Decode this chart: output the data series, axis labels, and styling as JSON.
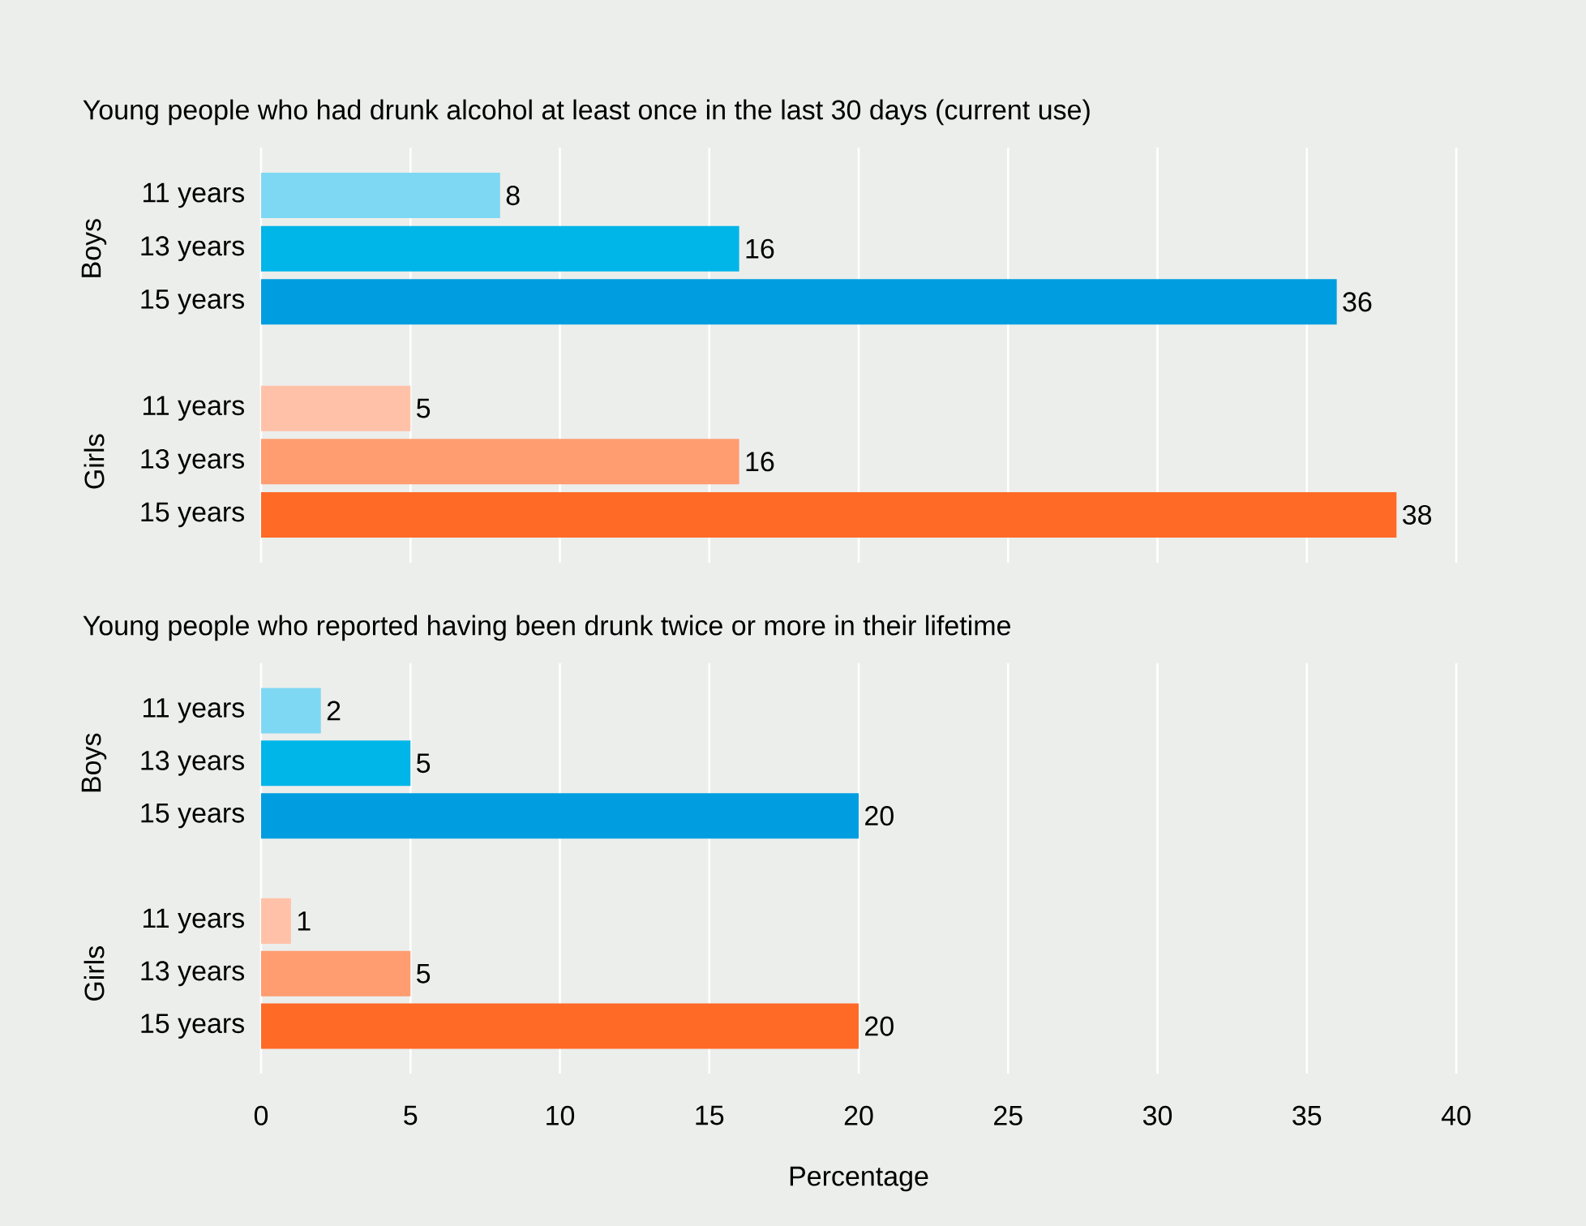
{
  "chart_data": [
    {
      "type": "bar",
      "orientation": "horizontal",
      "title": "Young people who had drunk alcohol at least once in the last 30 days (current use)",
      "categories": [
        "11 years",
        "13 years",
        "15 years",
        null,
        "11 years",
        "13 years",
        "15 years"
      ],
      "values": [
        8,
        16,
        36,
        null,
        5,
        16,
        38
      ],
      "colors": [
        "#7fd8f3",
        "#00b5e8",
        "#009ee0",
        null,
        "#ffc2a8",
        "#ff9c70",
        "#ff6a27"
      ],
      "annotations": [
        "Boys",
        "Girls"
      ],
      "xlim": [
        0,
        40
      ],
      "xticks": [
        0,
        5,
        10,
        15,
        20,
        25,
        30,
        35,
        40
      ],
      "grid": "x",
      "data_labels": true,
      "tick_labels": "y"
    },
    {
      "type": "bar",
      "orientation": "horizontal",
      "title": "Young people who reported having been drunk twice or more in their lifetime",
      "categories": [
        "11 years",
        "13 years",
        "15 years",
        null,
        "11 years",
        "13 years",
        "15 years"
      ],
      "values": [
        2,
        5,
        20,
        null,
        1,
        5,
        20
      ],
      "colors": [
        "#7fd8f3",
        "#00b5e8",
        "#009ee0",
        null,
        "#ffc2a8",
        "#ff9c70",
        "#ff6a27"
      ],
      "annotations": [
        "Boys",
        "Girls"
      ],
      "xlabel": "Percentage",
      "xlim": [
        0,
        40
      ],
      "xticks": [
        0,
        5,
        10,
        15,
        20,
        25,
        30,
        35,
        40
      ],
      "grid": "x",
      "data_labels": true
    }
  ]
}
